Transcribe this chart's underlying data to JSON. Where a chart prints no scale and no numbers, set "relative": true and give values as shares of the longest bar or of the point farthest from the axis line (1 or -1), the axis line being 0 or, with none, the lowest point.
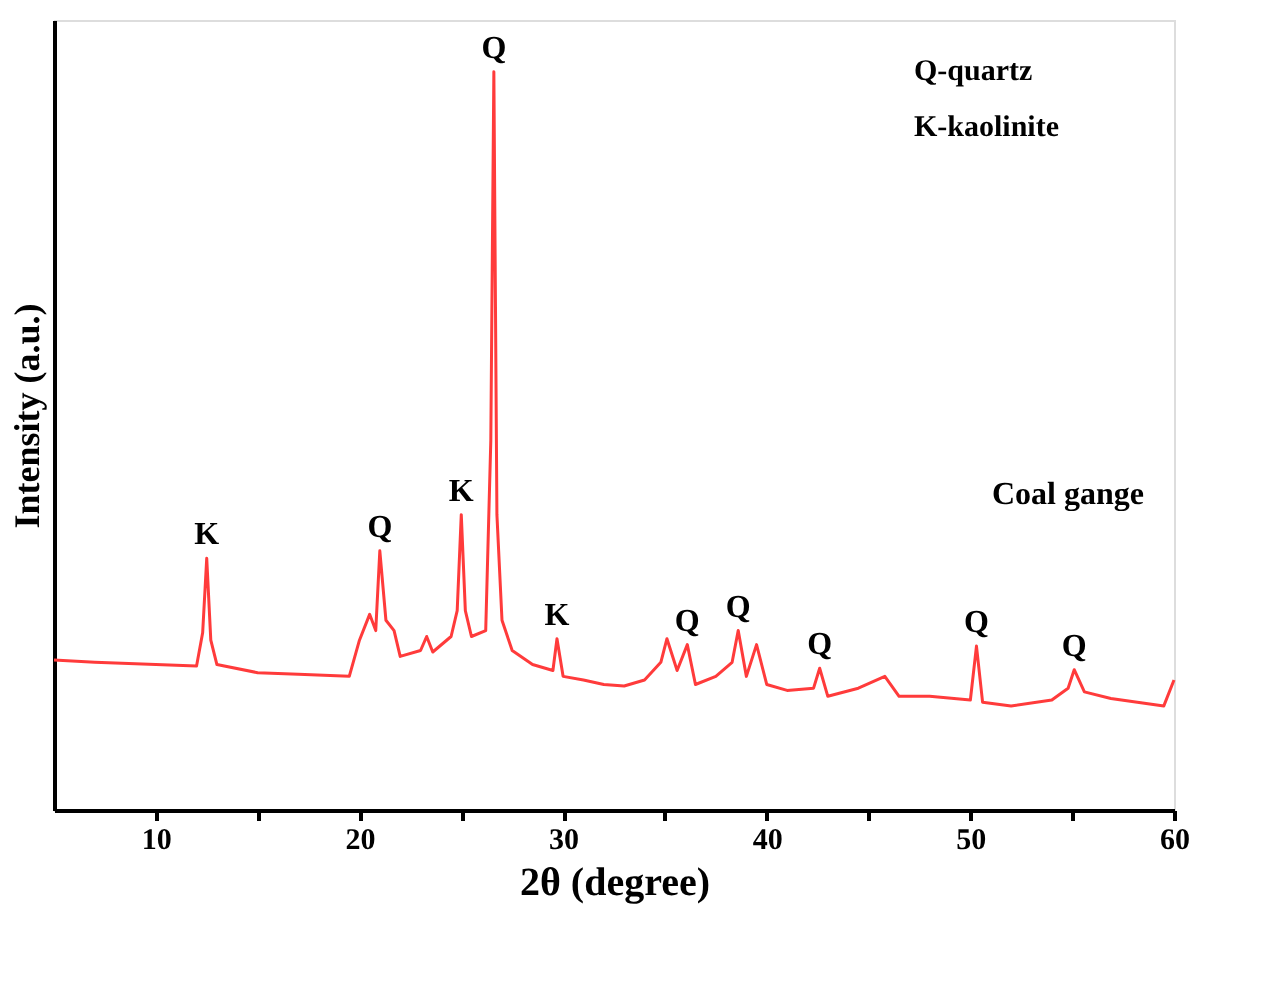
{
  "chart_data": {
    "type": "line",
    "relative": true,
    "xlabel": "2θ (degree)",
    "ylabel": "Intensity (a.u.)",
    "xlim": [
      5,
      60
    ],
    "xticks": [
      10,
      {
        "value": 15,
        "label": null
      },
      20,
      {
        "value": 25,
        "label": null
      },
      30,
      {
        "value": 35,
        "label": null
      },
      40,
      {
        "value": 45,
        "label": null
      },
      50,
      {
        "value": 55,
        "label": null
      },
      60
    ],
    "grid": false,
    "legend": false,
    "marker": "none",
    "line_style": "solid",
    "series": [
      {
        "name": "Coal gange",
        "color": "#ff3b3b",
        "x": [
          5,
          7,
          10,
          12,
          12.3,
          12.5,
          12.7,
          13,
          15,
          17,
          19.5,
          20,
          20.5,
          20.8,
          21.0,
          21.3,
          21.7,
          22,
          23,
          23.3,
          23.6,
          24.5,
          24.8,
          25.0,
          25.2,
          25.5,
          26.2,
          26.45,
          26.6,
          26.75,
          27.0,
          27.5,
          28.5,
          29.5,
          29.7,
          30,
          31,
          32,
          33,
          34,
          34.8,
          35.1,
          35.6,
          36.1,
          36.5,
          37.5,
          38.3,
          38.6,
          39.0,
          39.5,
          40,
          41,
          42.3,
          42.6,
          43.0,
          44.5,
          45.8,
          46.5,
          48,
          50.0,
          50.3,
          50.6,
          52,
          54,
          54.8,
          55.1,
          55.6,
          56.9,
          59.5,
          60
        ],
        "values": [
          0.203,
          0.2,
          0.197,
          0.195,
          0.24,
          0.341,
          0.23,
          0.197,
          0.186,
          0.184,
          0.181,
          0.23,
          0.265,
          0.243,
          0.351,
          0.257,
          0.243,
          0.208,
          0.216,
          0.235,
          0.214,
          0.235,
          0.27,
          0.4,
          0.27,
          0.235,
          0.243,
          0.5,
          1.0,
          0.4,
          0.257,
          0.216,
          0.197,
          0.189,
          0.232,
          0.181,
          0.176,
          0.17,
          0.168,
          0.176,
          0.2,
          0.232,
          0.189,
          0.224,
          0.17,
          0.181,
          0.2,
          0.243,
          0.181,
          0.224,
          0.17,
          0.162,
          0.165,
          0.192,
          0.154,
          0.165,
          0.181,
          0.154,
          0.154,
          0.149,
          0.222,
          0.146,
          0.141,
          0.149,
          0.165,
          0.19,
          0.16,
          0.151,
          0.141,
          0.176
        ]
      }
    ],
    "annotations": [
      "Q-quartz",
      "K-kaolinite",
      {
        "text": "K",
        "x": 12.5,
        "y": 0.341
      },
      {
        "text": "Q",
        "x": 21.0,
        "y": 0.351
      },
      {
        "text": "K",
        "x": 25.0,
        "y": 0.4
      },
      {
        "text": "Q",
        "x": 26.6,
        "y": 1.0
      },
      {
        "text": "K",
        "x": 29.7,
        "y": 0.232
      },
      {
        "text": "Q",
        "x": 36.1,
        "y": 0.224
      },
      {
        "text": "Q",
        "x": 38.6,
        "y": 0.243
      },
      {
        "text": "Q",
        "x": 42.6,
        "y": 0.192
      },
      {
        "text": "Q",
        "x": 50.3,
        "y": 0.222
      },
      {
        "text": "Q",
        "x": 55.1,
        "y": 0.19
      }
    ]
  }
}
